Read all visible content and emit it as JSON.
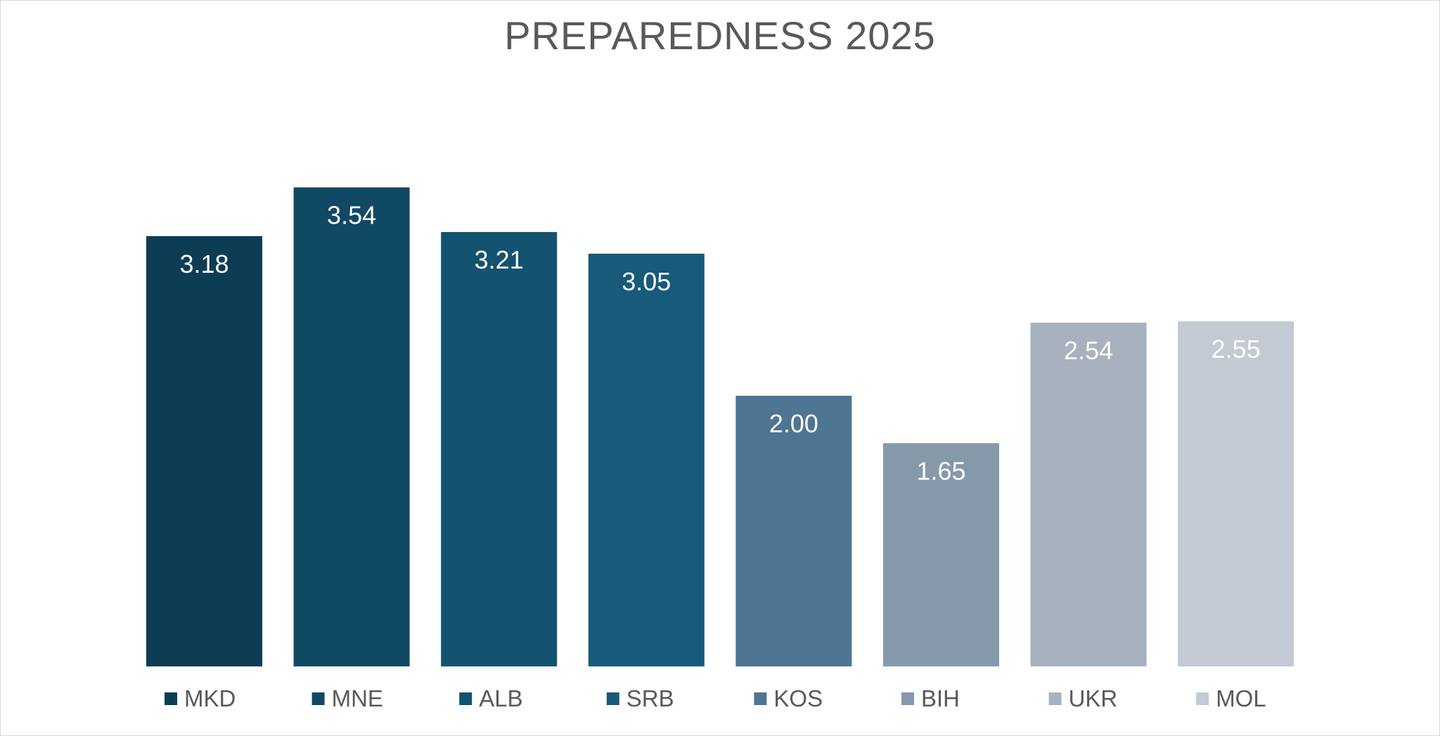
{
  "chart_data": {
    "type": "bar",
    "title": "PREPAREDNESS 2025",
    "categories": [
      "MKD",
      "MNE",
      "ALB",
      "SRB",
      "KOS",
      "BIH",
      "UKR",
      "MOL"
    ],
    "values": [
      3.18,
      3.54,
      3.21,
      3.05,
      2.0,
      1.65,
      2.54,
      2.55
    ],
    "value_labels": [
      "3.18",
      "3.54",
      "3.21",
      "3.05",
      "2.00",
      "1.65",
      "2.54",
      "2.55"
    ],
    "colors": [
      "#0d3d55",
      "#104964",
      "#13536f",
      "#175a7a",
      "#4e7591",
      "#8699aa",
      "#a7b2be",
      "#c4cad3"
    ],
    "ylim": [
      0,
      4.2
    ],
    "grid": false,
    "legend": "bottom"
  }
}
